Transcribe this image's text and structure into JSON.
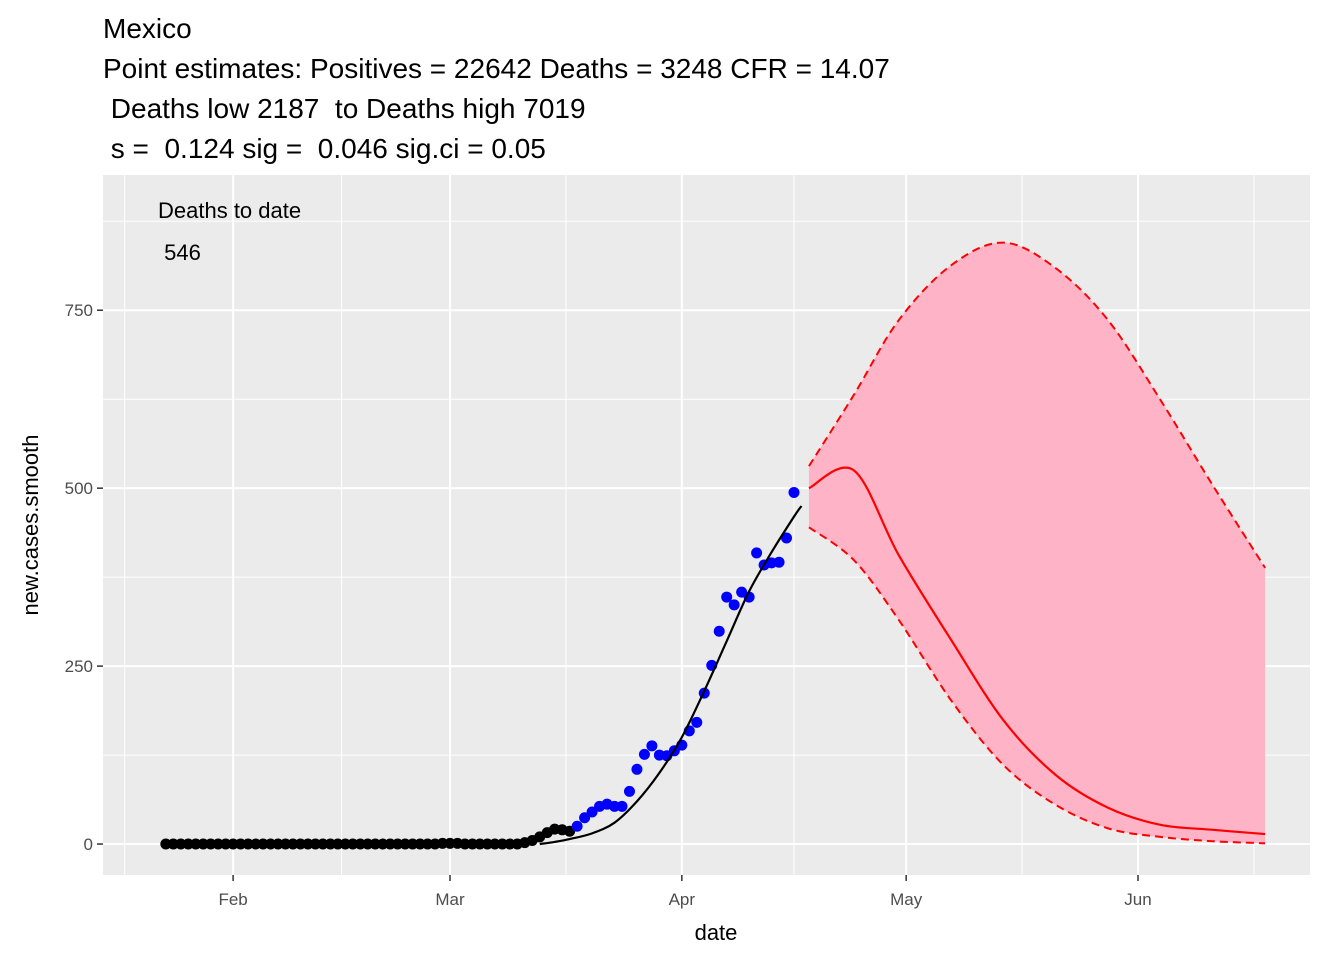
{
  "chart_data": {
    "type": "line",
    "title": "Mexico",
    "subtitle": [
      "Point estimates: Positives = 22642 Deaths = 3248 CFR = 14.07",
      " Deaths low 2187  to Deaths high 7019",
      " s =  0.124 sig =  0.046 sig.ci = 0.05"
    ],
    "annotations": [
      "Deaths to date",
      " 546"
    ],
    "x_label": "date",
    "y_label": "new.cases.smooth",
    "xlim": [
      14.6,
      176
    ],
    "ylim": [
      -43.5,
      940
    ],
    "xticks": [
      {
        "value": 32,
        "label": "Feb"
      },
      {
        "value": 61,
        "label": "Mar"
      },
      {
        "value": 92,
        "label": "Apr"
      },
      {
        "value": 122,
        "label": "May"
      },
      {
        "value": 153,
        "label": "Jun"
      }
    ],
    "yticks": [
      0,
      250,
      500,
      750
    ],
    "grid": true,
    "series": [
      {
        "mark": "point",
        "color": "#000000",
        "x": [
          23,
          24,
          25,
          26,
          27,
          28,
          29,
          30,
          31,
          32,
          33,
          34,
          35,
          36,
          37,
          38,
          39,
          40,
          41,
          42,
          43,
          44,
          45,
          46,
          47,
          48,
          49,
          50,
          51,
          52,
          53,
          54,
          55,
          56,
          57,
          58,
          59,
          60,
          61,
          62,
          63,
          64,
          65,
          66,
          67,
          68,
          69,
          70,
          71,
          72,
          73,
          74,
          75,
          76,
          77
        ],
        "values": [
          0,
          0,
          0,
          0,
          0,
          0,
          0,
          0,
          0,
          0,
          0,
          0,
          0,
          0,
          0,
          0,
          0,
          0,
          0,
          0,
          0,
          0,
          0,
          0,
          0,
          0,
          0,
          0,
          0,
          0,
          0,
          0,
          0,
          0,
          0,
          0,
          0,
          1,
          1,
          1,
          0,
          0,
          0,
          0,
          0,
          0,
          0,
          0,
          2,
          5,
          10,
          16,
          21,
          20,
          18
        ]
      },
      {
        "mark": "point",
        "color": "#0000ff",
        "x": [
          78,
          79,
          80,
          81,
          82,
          83,
          84,
          85,
          86,
          87,
          88,
          89,
          90,
          91,
          92,
          93,
          94,
          95,
          96,
          97,
          98,
          99,
          100,
          101,
          102,
          103,
          104,
          105,
          106,
          107
        ],
        "values": [
          25,
          37,
          45,
          53,
          56,
          53,
          53,
          74,
          105,
          126,
          138,
          125,
          124,
          131,
          139,
          159,
          171,
          212,
          251,
          299,
          347,
          336,
          354,
          347,
          409,
          392,
          395,
          396,
          430,
          494
        ]
      },
      {
        "mark": "line",
        "color": "#000000",
        "x": [
          73,
          75,
          77,
          80,
          83,
          86,
          89,
          92,
          95,
          98,
          101,
          104,
          107,
          108
        ],
        "values": [
          0,
          3,
          7,
          15,
          30,
          60,
          100,
          150,
          215,
          285,
          355,
          410,
          460,
          475
        ]
      },
      {
        "mark": "line",
        "color": "#ff0000",
        "band_color": "#ffb3c6",
        "x": [
          109,
          115,
          121,
          128,
          135,
          142,
          149,
          156,
          163,
          170
        ],
        "values": [
          500,
          525,
          406,
          287,
          174,
          97,
          51,
          27,
          20,
          14
        ],
        "low": [
          445,
          399,
          315,
          202,
          111,
          55,
          22,
          10,
          4,
          1
        ],
        "high": [
          531,
          631,
          736,
          813,
          845,
          809,
          736,
          624,
          504,
          388
        ]
      }
    ]
  }
}
